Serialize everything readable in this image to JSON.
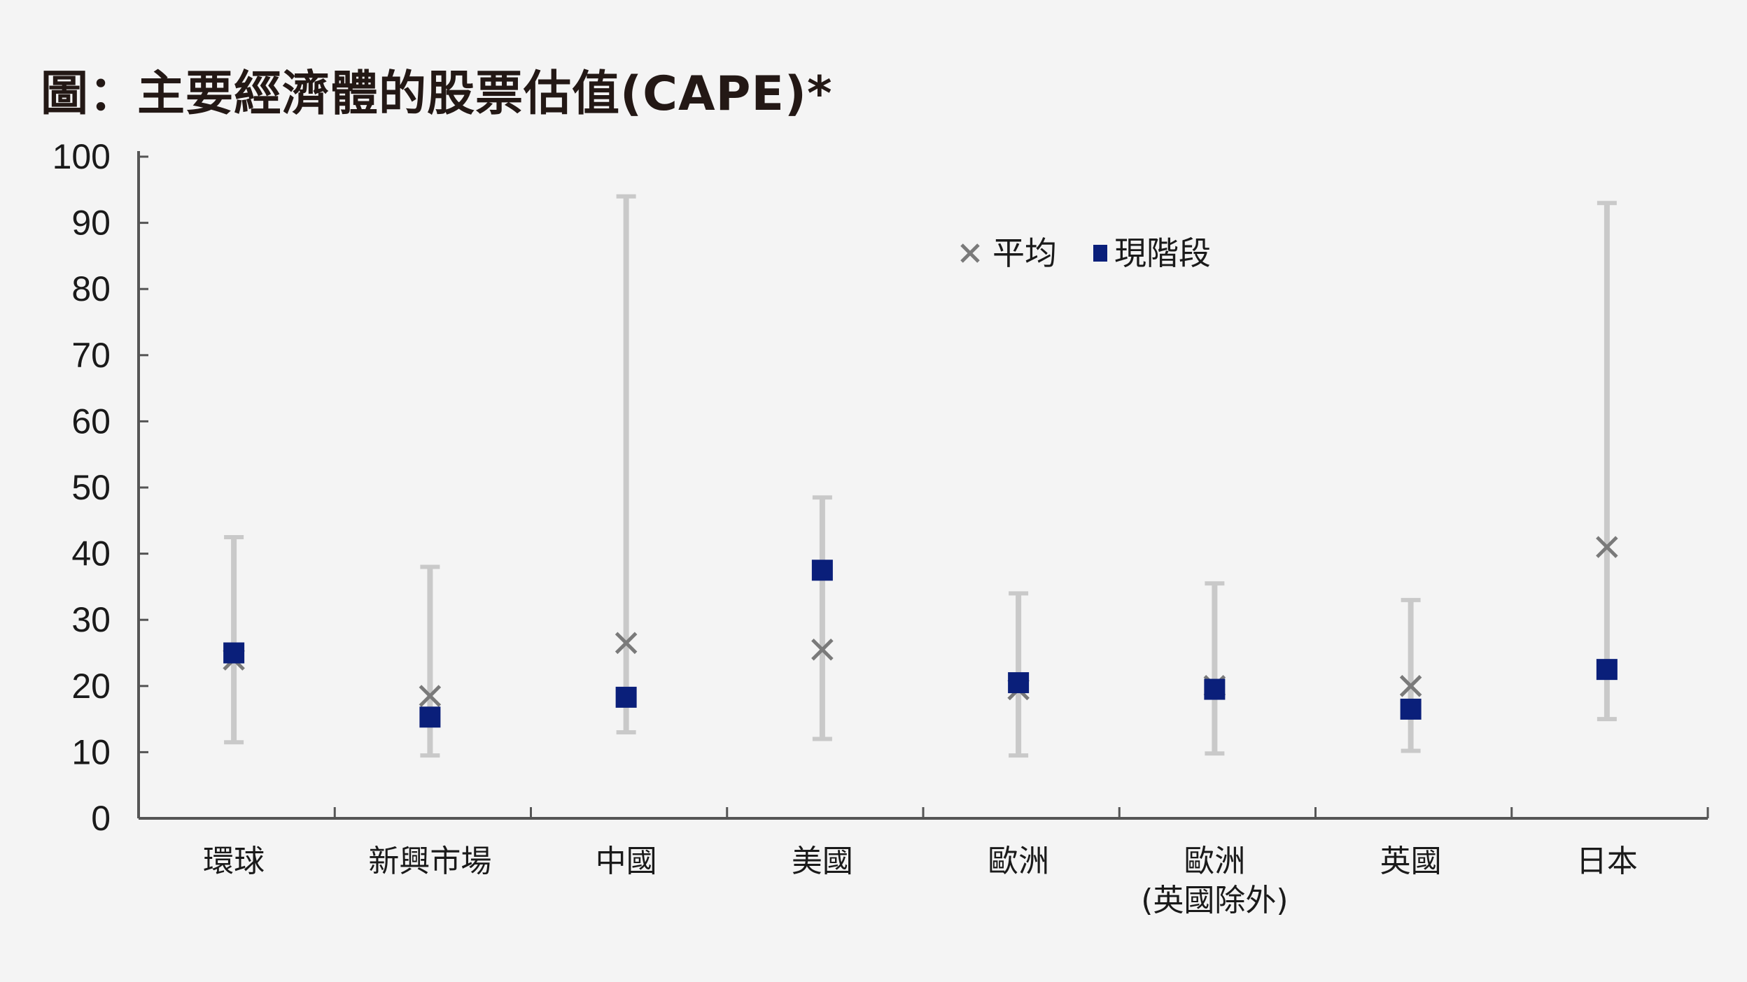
{
  "title": "圖：主要經濟體的股票估值(CAPE)*",
  "chart_data": {
    "type": "scatter",
    "categories": [
      [
        "環球"
      ],
      [
        "新興市場"
      ],
      [
        "中國"
      ],
      [
        "美國"
      ],
      [
        "歐洲"
      ],
      [
        "歐洲",
        "(英國除外)"
      ],
      [
        "英國"
      ],
      [
        "日本"
      ]
    ],
    "series": [
      {
        "name": "平均",
        "values": [
          24,
          18.5,
          26.5,
          25.5,
          19.5,
          20,
          20,
          41
        ]
      },
      {
        "name": "現階段",
        "values": [
          25,
          15.3,
          18.3,
          37.5,
          20.5,
          19.5,
          16.5,
          22.5
        ]
      }
    ],
    "ranges": {
      "low": [
        11.5,
        9.5,
        13,
        12,
        9.5,
        9.8,
        10.2,
        15
      ],
      "high": [
        42.5,
        38,
        94,
        48.5,
        34,
        35.5,
        33,
        93
      ]
    },
    "ylim": [
      0,
      100
    ],
    "yticks": [
      "0",
      "10",
      "20",
      "30",
      "40",
      "50",
      "60",
      "70",
      "80",
      "90",
      "100"
    ],
    "legend_position": "top-center",
    "grid": false,
    "colors": {
      "current_marker": "#0a1f7a",
      "average_marker": "#7a7a7a",
      "range_bar": "#c9c9c9",
      "axis": "#555555"
    }
  }
}
